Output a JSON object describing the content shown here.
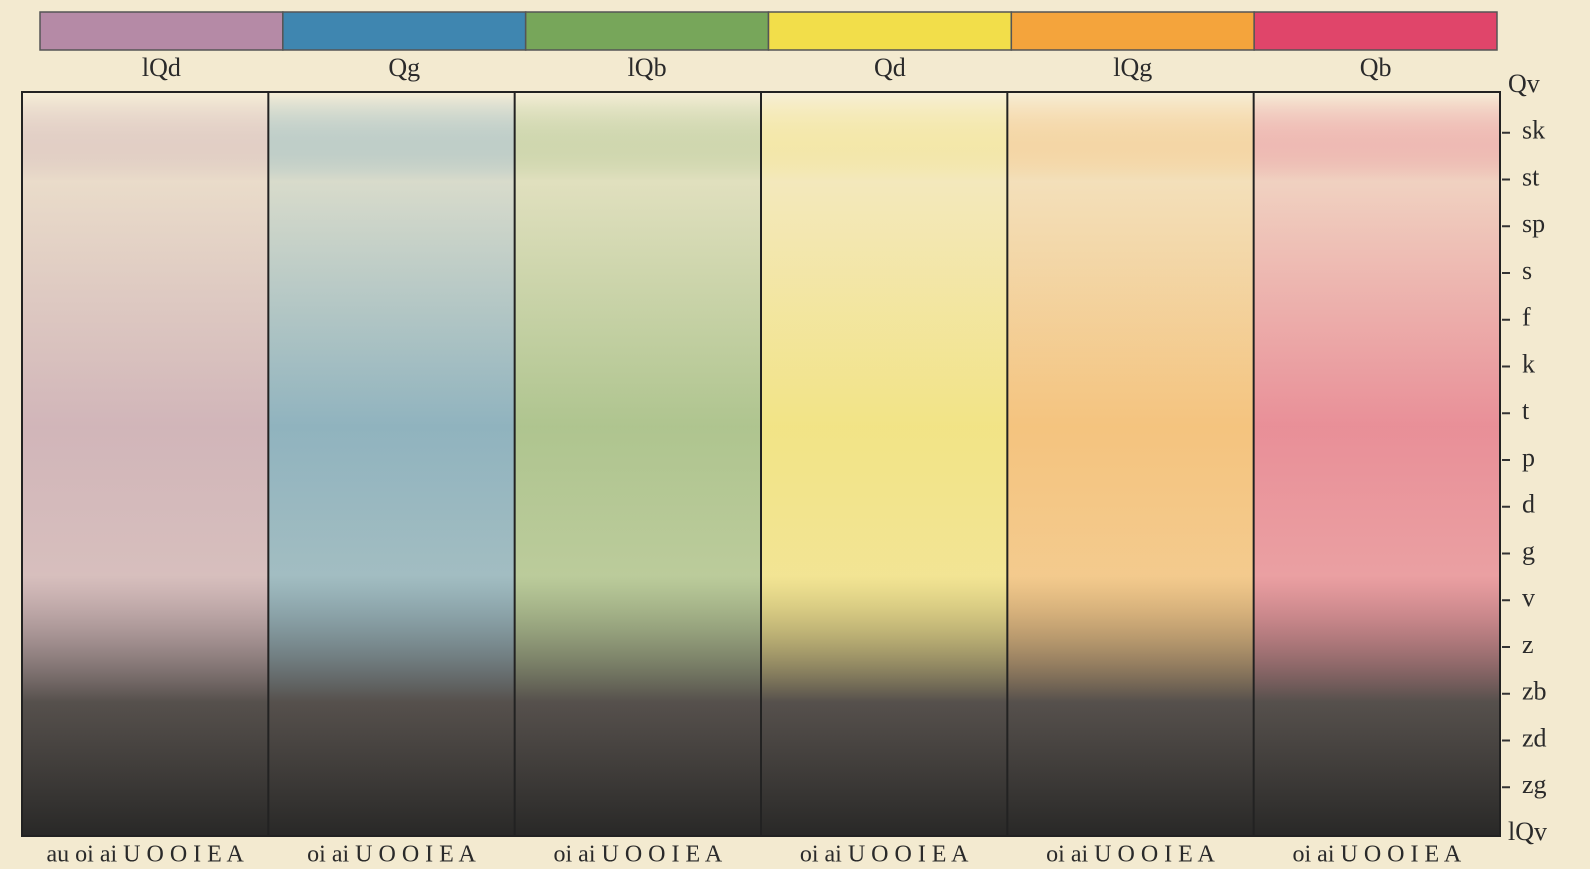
{
  "swatches": [
    {
      "label": "lQd",
      "color": "#b58aa6"
    },
    {
      "label": "Qg",
      "color": "#3f86b0"
    },
    {
      "label": "lQb",
      "color": "#77a65a"
    },
    {
      "label": "Qd",
      "color": "#f2de4a"
    },
    {
      "label": "lQg",
      "color": "#f4a43c"
    },
    {
      "label": "Qb",
      "color": "#e0456a"
    }
  ],
  "right_labels": [
    "Qv",
    "sk",
    "st",
    "sp",
    "s",
    "f",
    "k",
    "t",
    "p",
    "d",
    "g",
    "v",
    "z",
    "zb",
    "zd",
    "zg",
    "lQv"
  ],
  "bottom_labels": [
    "au oi ai U O O I E A",
    "oi ai U O O I E A",
    "oi ai U O O I E A",
    "oi ai U O O I E A",
    "oi ai U O O I E A",
    "oi ai U O O I E A"
  ]
}
